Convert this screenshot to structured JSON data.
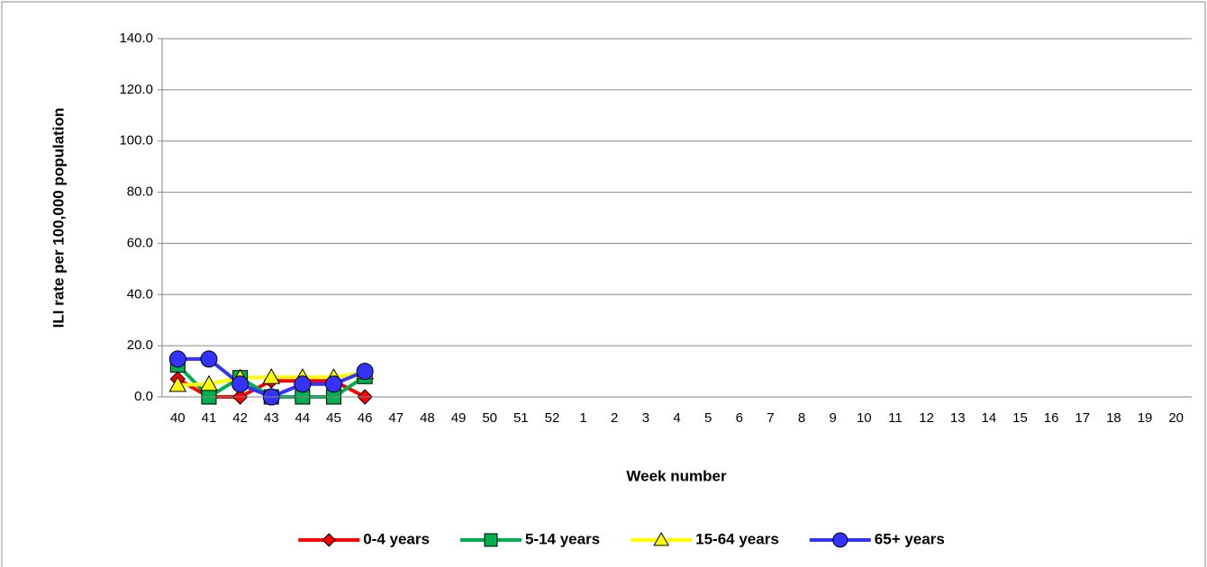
{
  "chart_data": {
    "type": "line",
    "y_label": "ILI rate per 100,000 population",
    "x_label": "Week number",
    "categories": [
      "40",
      "41",
      "42",
      "43",
      "44",
      "45",
      "46",
      "47",
      "48",
      "49",
      "50",
      "51",
      "52",
      "1",
      "2",
      "3",
      "4",
      "5",
      "6",
      "7",
      "8",
      "9",
      "10",
      "11",
      "12",
      "13",
      "14",
      "15",
      "16",
      "17",
      "18",
      "19",
      "20"
    ],
    "series": [
      {
        "name": "0-4 years",
        "color": "#ff0000",
        "marker_color": "#ff0000",
        "marker": "diamond",
        "values": [
          7.0,
          0,
          0,
          6.3,
          6.3,
          6.3,
          0,
          null,
          null,
          null,
          null,
          null,
          null,
          null,
          null,
          null,
          null,
          null,
          null,
          null,
          null,
          null,
          null,
          null,
          null,
          null,
          null,
          null,
          null,
          null,
          null,
          null,
          null
        ]
      },
      {
        "name": "5-14 years",
        "color": "#00b050",
        "marker_color": "#00b050",
        "marker": "square",
        "values": [
          12.5,
          0,
          7.5,
          0,
          0,
          0,
          8.0,
          null,
          null,
          null,
          null,
          null,
          null,
          null,
          null,
          null,
          null,
          null,
          null,
          null,
          null,
          null,
          null,
          null,
          null,
          null,
          null,
          null,
          null,
          null,
          null,
          null,
          null
        ]
      },
      {
        "name": "15-64 years",
        "color": "#ffff00",
        "marker_color": "#ffff00",
        "marker": "triangle",
        "values": [
          4.6,
          5.0,
          7.5,
          7.7,
          7.7,
          7.7,
          9.6,
          null,
          null,
          null,
          null,
          null,
          null,
          null,
          null,
          null,
          null,
          null,
          null,
          null,
          null,
          null,
          null,
          null,
          null,
          null,
          null,
          null,
          null,
          null,
          null,
          null,
          null
        ]
      },
      {
        "name": "65+ years",
        "color": "#3333ff",
        "marker_color": "#3333ff",
        "marker": "circle",
        "values": [
          14.8,
          14.8,
          5.0,
          0,
          5.0,
          5.0,
          10.0,
          null,
          null,
          null,
          null,
          null,
          null,
          null,
          null,
          null,
          null,
          null,
          null,
          null,
          null,
          null,
          null,
          null,
          null,
          null,
          null,
          null,
          null,
          null,
          null,
          null,
          null
        ]
      }
    ],
    "ylim": [
      0,
      140
    ],
    "yticks": [
      {
        "value": 0,
        "label": "0.0"
      },
      {
        "value": 20,
        "label": "20.0"
      },
      {
        "value": 40,
        "label": "40.0"
      },
      {
        "value": 60,
        "label": "60.0"
      },
      {
        "value": 80,
        "label": "80.0"
      },
      {
        "value": 100,
        "label": "100.0"
      },
      {
        "value": 120,
        "label": "120.0"
      },
      {
        "value": 140,
        "label": "140.0"
      }
    ],
    "grid": true,
    "legend": "bottom"
  }
}
